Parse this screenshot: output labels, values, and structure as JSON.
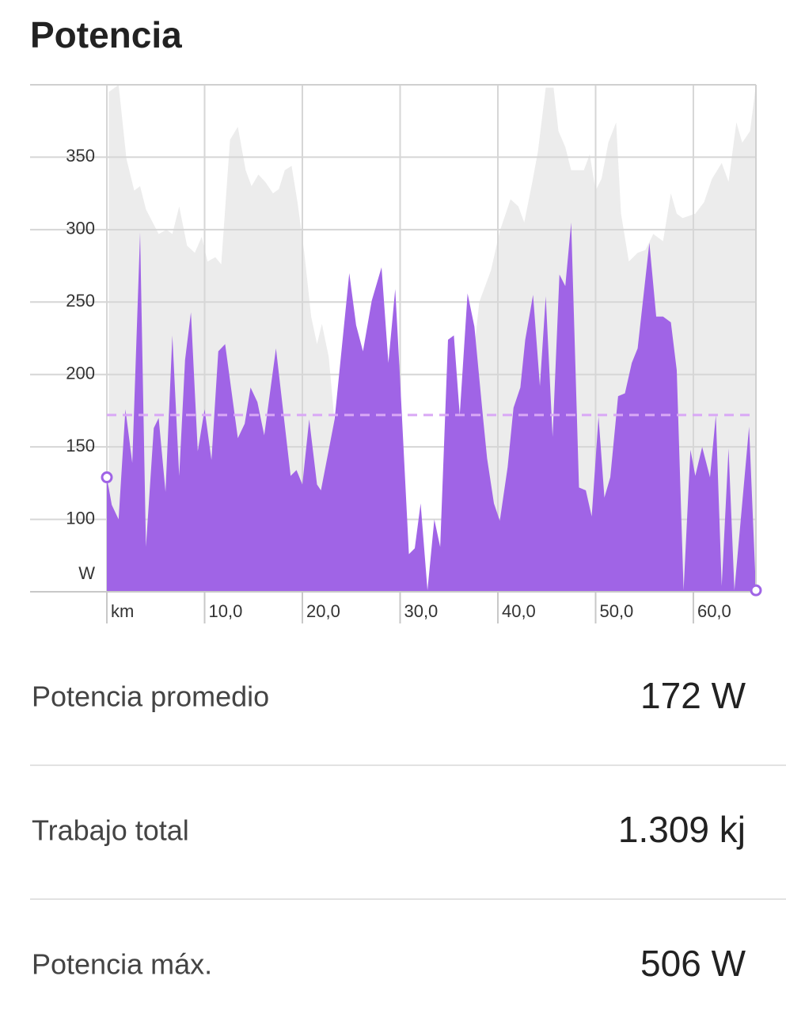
{
  "title": "Potencia",
  "chart_data": {
    "type": "area",
    "y_unit": "W",
    "x_unit": "km",
    "xlim": [
      0,
      66.4
    ],
    "ylim": [
      50,
      400
    ],
    "xticks": [
      0,
      {
        "value": 10,
        "label": "10,0"
      },
      {
        "value": 20,
        "label": "20,0"
      },
      {
        "value": 30,
        "label": "30,0"
      },
      {
        "value": 40,
        "label": "40,0"
      },
      {
        "value": 50,
        "label": "50,0"
      },
      {
        "value": 60,
        "label": "60,0"
      }
    ],
    "yticks": [
      100,
      150,
      200,
      250,
      300,
      350
    ],
    "grid": true,
    "average": 172,
    "average_color": "#d9a8f5",
    "series": [
      {
        "color": "#ececec",
        "x": [
          0.2,
          1.2,
          2.0,
          2.8,
          3.4,
          4.0,
          5.3,
          6.1,
          6.7,
          7.4,
          8.2,
          9.0,
          9.7,
          10.3,
          11.1,
          11.7,
          12.6,
          13.4,
          14.2,
          14.8,
          15.5,
          16.2,
          17.0,
          17.6,
          18.2,
          18.9,
          19.5,
          20.2,
          20.9,
          21.5,
          22.0,
          22.7,
          23.5,
          24.3,
          25.5,
          26.5,
          27.9,
          29.6,
          31.2,
          32.8,
          34.4,
          35.6,
          36.8,
          38.1,
          39.3,
          40.2,
          41.3,
          42.1,
          42.7,
          43.5,
          44.1,
          44.9,
          45.7,
          46.2,
          46.9,
          47.5,
          48.8,
          49.4,
          50.0,
          50.6,
          51.3,
          52.1,
          52.6,
          53.4,
          54.3,
          55.1,
          55.9,
          56.9,
          57.7,
          58.3,
          58.9,
          60.2,
          61.1,
          61.9,
          62.9,
          63.6,
          64.4,
          65.0,
          65.8,
          66.4
        ],
        "values": [
          395,
          400,
          349,
          327,
          330,
          314,
          297,
          300,
          297,
          316,
          289,
          284,
          295,
          278,
          281,
          276,
          362,
          371,
          341,
          330,
          338,
          333,
          325,
          328,
          341,
          344,
          319,
          284,
          240,
          221,
          235,
          212,
          152,
          87,
          73,
          56,
          51,
          76,
          54,
          51,
          54,
          87,
          169,
          250,
          272,
          299,
          321,
          316,
          305,
          332,
          354,
          398,
          398,
          368,
          357,
          341,
          341,
          352,
          327,
          335,
          360,
          374,
          311,
          278,
          284,
          286,
          297,
          292,
          325,
          311,
          308,
          311,
          319,
          335,
          346,
          333,
          374,
          360,
          368,
          400
        ]
      },
      {
        "color": "#a064e6",
        "x": [
          0,
          0.5,
          1.2,
          1.9,
          2.6,
          3.4,
          4.0,
          4.8,
          5.3,
          6.0,
          6.7,
          7.4,
          8.0,
          8.6,
          9.3,
          10.0,
          10.7,
          11.4,
          12.1,
          13.4,
          14.1,
          14.7,
          15.4,
          16.1,
          17.3,
          18.8,
          19.4,
          20.0,
          20.7,
          21.5,
          21.9,
          23.3,
          24.8,
          25.5,
          26.2,
          27.1,
          28.1,
          28.8,
          29.5,
          30.0,
          30.9,
          31.5,
          32.1,
          32.8,
          33.5,
          34.1,
          34.9,
          35.5,
          36.1,
          36.9,
          37.6,
          38.5,
          38.9,
          39.6,
          40.2,
          41.0,
          41.6,
          42.3,
          42.8,
          43.6,
          44.3,
          44.9,
          45.6,
          46.3,
          46.9,
          47.5,
          48.3,
          49.0,
          49.6,
          50.3,
          50.9,
          51.5,
          52.3,
          53.0,
          53.7,
          54.3,
          55.5,
          56.2,
          56.9,
          57.7,
          58.3,
          59.0,
          59.7,
          60.2,
          60.9,
          61.7,
          62.3,
          62.9,
          63.6,
          64.2,
          65.7,
          66.4
        ],
        "values": [
          129,
          110,
          100,
          176,
          139,
          298,
          81,
          163,
          170,
          119,
          227,
          130,
          210,
          243,
          147,
          176,
          141,
          216,
          221,
          156,
          166,
          191,
          181,
          158,
          218,
          130,
          134,
          124,
          169,
          124,
          120,
          169,
          270,
          234,
          216,
          251,
          274,
          208,
          259,
          196,
          76,
          80,
          111,
          51,
          100,
          81,
          224,
          227,
          172,
          256,
          233,
          169,
          142,
          111,
          99,
          136,
          177,
          191,
          224,
          255,
          192,
          254,
          157,
          269,
          261,
          305,
          122,
          120,
          102,
          171,
          115,
          129,
          185,
          187,
          208,
          218,
          291,
          240,
          240,
          236,
          203,
          51,
          148,
          130,
          150,
          129,
          172,
          54,
          149,
          51,
          164,
          51
        ]
      }
    ]
  },
  "stats": [
    {
      "label": "Potencia promedio",
      "value": "172 W"
    },
    {
      "label": "Trabajo total",
      "value": "1.309 kj"
    },
    {
      "label": "Potencia máx.",
      "value": "506 W"
    }
  ]
}
